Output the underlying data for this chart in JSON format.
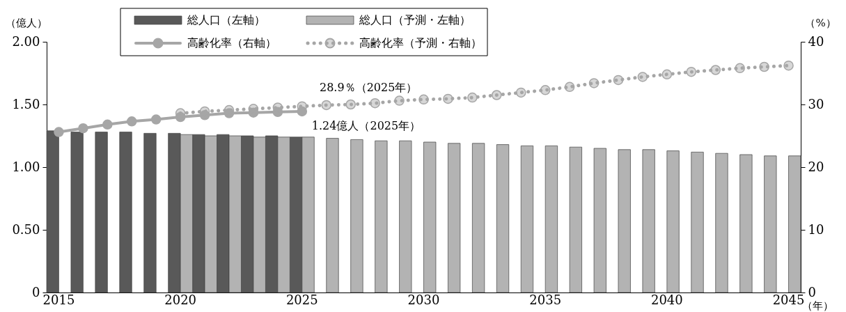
{
  "chart_data": {
    "type": "bar",
    "categories": [
      "2015",
      null,
      null,
      null,
      null,
      "2020",
      null,
      null,
      null,
      null,
      "2025",
      null,
      null,
      null,
      null,
      "2030",
      null,
      null,
      null,
      null,
      "2035",
      null,
      null,
      null,
      null,
      "2040",
      null,
      null,
      null,
      null,
      "2045"
    ],
    "xlabel": "（年）",
    "ylabel": "（億人）",
    "y2label": "（%）",
    "series": [
      {
        "name": "総人口（左軸）",
        "color": "#595959",
        "values": [
          1.29,
          1.28,
          1.28,
          1.28,
          1.27,
          1.27,
          1.26,
          1.26,
          1.25,
          1.25,
          1.24,
          null,
          null,
          null,
          null,
          null,
          null,
          null,
          null,
          null,
          null,
          null,
          null,
          null,
          null,
          null,
          null,
          null,
          null,
          null,
          null
        ]
      },
      {
        "name": "総人口（予測・左軸）",
        "color": "#b3b3b3",
        "values": [
          null,
          null,
          null,
          null,
          null,
          1.26,
          1.25,
          1.25,
          1.24,
          1.24,
          1.24,
          1.23,
          1.22,
          1.21,
          1.21,
          1.2,
          1.19,
          1.19,
          1.18,
          1.17,
          1.17,
          1.16,
          1.15,
          1.14,
          1.14,
          1.13,
          1.12,
          1.11,
          1.1,
          1.09,
          1.09
        ]
      },
      {
        "name": "高齢化率（右軸）",
        "type": "line",
        "axis": "y2",
        "color": "#a6a6a6",
        "line_style": "solid",
        "marker": "circle",
        "values": [
          25.6,
          26.2,
          26.8,
          27.3,
          27.6,
          28.0,
          28.3,
          28.6,
          28.7,
          28.8,
          28.9,
          null,
          null,
          null,
          null,
          null,
          null,
          null,
          null,
          null,
          null,
          null,
          null,
          null,
          null,
          null,
          null,
          null,
          null,
          null,
          null
        ]
      },
      {
        "name": "高齢化率（予測・右軸）",
        "type": "line",
        "axis": "y2",
        "color": "#a6a6a6",
        "line_style": "dotted",
        "marker": "circle",
        "values": [
          null,
          null,
          null,
          null,
          null,
          28.6,
          28.9,
          29.1,
          29.3,
          29.5,
          29.7,
          29.9,
          30.0,
          30.2,
          30.6,
          30.8,
          30.9,
          31.1,
          31.5,
          31.9,
          32.3,
          32.8,
          33.4,
          33.9,
          34.4,
          34.8,
          35.2,
          35.5,
          35.8,
          36.0,
          36.2
        ]
      }
    ],
    "ylim": [
      0,
      2
    ],
    "yticks": [
      0,
      {
        "value": 0.5,
        "label": "0.50"
      },
      {
        "value": 1,
        "label": "1.00"
      },
      {
        "value": 1.5,
        "label": "1.50"
      },
      {
        "value": 2,
        "label": "2.00"
      }
    ],
    "y2lim": [
      0,
      40
    ],
    "y2ticks": [
      0,
      10,
      20,
      30,
      40
    ],
    "grid": false,
    "legend": "top",
    "annotations": [
      "28.9％（2025年）",
      {
        "text": "1.24億人（2025年）",
        "x": "2025",
        "y": 1.24
      }
    ]
  }
}
